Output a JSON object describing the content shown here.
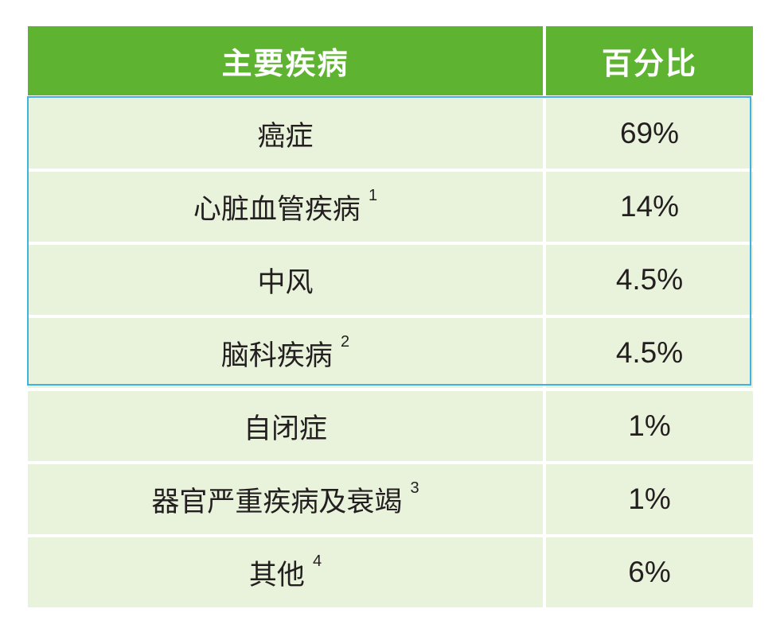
{
  "table": {
    "headers": [
      "主要疾病",
      "百分比"
    ],
    "rows": [
      {
        "disease": "癌症",
        "note": "",
        "percent": "69%"
      },
      {
        "disease": "心脏血管疾病",
        "note": "1",
        "percent": "14%"
      },
      {
        "disease": "中风",
        "note": "",
        "percent": "4.5%"
      },
      {
        "disease": "脑科疾病",
        "note": "2",
        "percent": "4.5%"
      },
      {
        "disease": "自闭症",
        "note": "",
        "percent": "1%"
      },
      {
        "disease": "器官严重疾病及衰竭",
        "note": "3",
        "percent": "1%"
      },
      {
        "disease": "其他",
        "note": "4",
        "percent": "6%"
      }
    ]
  },
  "colors": {
    "header_bg": "#5eb431",
    "row_bg": "#e9f2da",
    "highlight_border": "#3fb1e3",
    "text": "#231f20"
  }
}
